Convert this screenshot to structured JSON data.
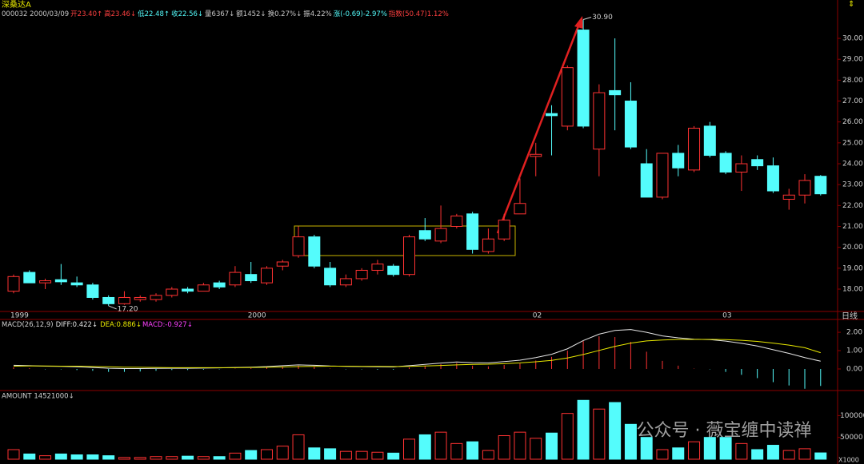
{
  "header": {
    "stock_name": "深桑达A",
    "info": [
      {
        "text": "000032 2000/03/09",
        "color": "#c8c8c8"
      },
      {
        "text": "开23.40↑",
        "color": "#ff4040"
      },
      {
        "text": "高23.46↓",
        "color": "#ff4040"
      },
      {
        "text": "低22.48↑",
        "color": "#54fcfc"
      },
      {
        "text": "收22.56↓",
        "color": "#54fcfc"
      },
      {
        "text": "量6367↓",
        "color": "#c8c8c8"
      },
      {
        "text": "额1452↓",
        "color": "#c8c8c8"
      },
      {
        "text": "换0.27%↓",
        "color": "#c8c8c8"
      },
      {
        "text": "振4.22%",
        "color": "#c8c8c8"
      },
      {
        "text": "涨(-0.69)-2.97%",
        "color": "#54fcfc"
      },
      {
        "text": "指数(50.47)1.12%",
        "color": "#ff4040"
      }
    ]
  },
  "watermark": "公众号 · 薇宝缠中读禅",
  "chart_data": [
    {
      "type": "candlestick",
      "categories": [
        "1999",
        null,
        null,
        null,
        null,
        null,
        null,
        null,
        null,
        null,
        null,
        null,
        null,
        null,
        null,
        "2000",
        null,
        null,
        null,
        null,
        null,
        null,
        null,
        null,
        null,
        null,
        null,
        null,
        null,
        null,
        null,
        null,
        null,
        "02",
        null,
        null,
        null,
        null,
        null,
        null,
        null,
        null,
        null,
        null,
        null,
        "03",
        null,
        null,
        null,
        null,
        null,
        null
      ],
      "open": [
        17.9,
        18.8,
        18.3,
        18.45,
        18.3,
        18.2,
        17.6,
        17.3,
        17.5,
        17.5,
        17.7,
        18.0,
        17.9,
        18.3,
        18.2,
        18.7,
        18.3,
        19.1,
        19.6,
        20.5,
        19.0,
        18.2,
        18.5,
        18.9,
        19.1,
        18.7,
        20.8,
        20.3,
        21.0,
        21.6,
        19.8,
        20.4,
        21.6,
        24.35,
        26.4,
        25.8,
        30.4,
        24.7,
        27.5,
        27.0,
        24.0,
        22.4,
        24.5,
        23.7,
        25.8,
        24.5,
        23.6,
        24.2,
        23.9,
        22.3,
        22.5,
        23.4
      ],
      "high": [
        18.7,
        18.9,
        18.5,
        19.2,
        18.6,
        18.3,
        17.7,
        17.9,
        17.7,
        17.8,
        18.1,
        18.1,
        18.3,
        18.4,
        19.1,
        19.3,
        19.1,
        19.4,
        21.0,
        20.6,
        19.3,
        18.7,
        19.0,
        19.4,
        19.2,
        20.6,
        21.4,
        22.0,
        21.6,
        21.7,
        20.9,
        21.6,
        23.3,
        25.0,
        26.8,
        28.7,
        30.9,
        27.8,
        30.0,
        27.9,
        24.7,
        24.5,
        24.9,
        25.8,
        26.0,
        24.6,
        24.4,
        24.4,
        24.3,
        22.8,
        23.5,
        23.46
      ],
      "low": [
        17.8,
        18.3,
        18.0,
        18.2,
        18.1,
        17.5,
        17.2,
        17.25,
        17.4,
        17.4,
        17.6,
        17.8,
        17.9,
        18.0,
        18.1,
        18.3,
        18.2,
        18.9,
        19.5,
        19.0,
        18.1,
        18.1,
        18.4,
        18.7,
        18.6,
        18.6,
        20.3,
        20.2,
        20.9,
        19.7,
        19.7,
        20.3,
        21.6,
        23.4,
        24.4,
        25.6,
        25.7,
        23.4,
        25.6,
        24.7,
        22.4,
        22.3,
        23.4,
        23.6,
        24.3,
        23.5,
        22.7,
        23.7,
        22.6,
        21.8,
        22.1,
        22.48
      ],
      "close": [
        18.6,
        18.3,
        18.4,
        18.35,
        18.2,
        17.6,
        17.3,
        17.6,
        17.6,
        17.7,
        18.0,
        17.9,
        18.2,
        18.1,
        18.8,
        18.4,
        19.0,
        19.3,
        20.5,
        19.1,
        18.2,
        18.5,
        18.9,
        19.2,
        18.7,
        20.5,
        20.4,
        20.9,
        21.5,
        19.9,
        20.4,
        21.3,
        22.1,
        24.45,
        26.3,
        28.6,
        25.8,
        27.4,
        27.3,
        24.8,
        22.4,
        24.5,
        23.8,
        25.7,
        24.4,
        23.6,
        24.0,
        23.9,
        22.7,
        22.5,
        23.2,
        22.56
      ],
      "up_color": "#ff3232",
      "down_color": "#54fcfc",
      "ylim": [
        16.93,
        31.53
      ],
      "yticks": [
        {
          "value": 18,
          "label": "18.00"
        },
        {
          "value": 19,
          "label": "19.00"
        },
        {
          "value": 20,
          "label": "20.00"
        },
        {
          "value": 21,
          "label": "21.00"
        },
        {
          "value": 22,
          "label": "22.00"
        },
        {
          "value": 23,
          "label": "23.00"
        },
        {
          "value": 24,
          "label": "24.00"
        },
        {
          "value": 25,
          "label": "25.00"
        },
        {
          "value": 26,
          "label": "26.00"
        },
        {
          "value": 27,
          "label": "27.00"
        },
        {
          "value": 28,
          "label": "28.00"
        },
        {
          "value": 29,
          "label": "29.00"
        },
        {
          "value": 30,
          "label": "30.00"
        }
      ],
      "high_label": "30.90",
      "low_label": "17.20",
      "period_label": "日线"
    },
    {
      "type": "macd",
      "header": "MACD(26,12,9)",
      "series": [
        {
          "label": "DIFF:0.422↓",
          "color": "#e6e6e6",
          "values": [
            0.2,
            0.18,
            0.15,
            0.14,
            0.12,
            0.08,
            0.04,
            0.02,
            0.02,
            0.03,
            0.04,
            0.04,
            0.05,
            0.06,
            0.08,
            0.1,
            0.13,
            0.18,
            0.22,
            0.2,
            0.16,
            0.14,
            0.13,
            0.12,
            0.11,
            0.18,
            0.25,
            0.32,
            0.38,
            0.34,
            0.33,
            0.4,
            0.48,
            0.62,
            0.8,
            1.1,
            1.55,
            1.9,
            2.1,
            2.15,
            2.0,
            1.8,
            1.7,
            1.62,
            1.6,
            1.52,
            1.4,
            1.25,
            1.05,
            0.85,
            0.62,
            0.422
          ]
        },
        {
          "label": "DEA:0.886↓",
          "color": "#e8e800",
          "values": [
            0.15,
            0.16,
            0.16,
            0.15,
            0.15,
            0.13,
            0.12,
            0.1,
            0.09,
            0.08,
            0.07,
            0.07,
            0.07,
            0.07,
            0.07,
            0.08,
            0.09,
            0.11,
            0.13,
            0.14,
            0.15,
            0.15,
            0.14,
            0.14,
            0.13,
            0.14,
            0.16,
            0.19,
            0.22,
            0.25,
            0.26,
            0.29,
            0.33,
            0.39,
            0.47,
            0.6,
            0.79,
            1.01,
            1.23,
            1.41,
            1.53,
            1.58,
            1.61,
            1.61,
            1.61,
            1.6,
            1.56,
            1.5,
            1.41,
            1.3,
            1.16,
            0.886
          ]
        }
      ],
      "histogram": {
        "label": "MACD:-0.927↓",
        "color": "#ff40ff",
        "values": [
          0.1,
          0.04,
          -0.02,
          -0.02,
          -0.06,
          -0.1,
          -0.16,
          -0.16,
          -0.14,
          -0.1,
          -0.06,
          -0.06,
          -0.04,
          -0.02,
          0.02,
          0.04,
          0.08,
          0.14,
          0.18,
          0.12,
          0.02,
          -0.02,
          -0.02,
          -0.04,
          -0.04,
          0.08,
          0.18,
          0.26,
          0.32,
          0.18,
          0.14,
          0.22,
          0.3,
          0.46,
          0.66,
          1.0,
          1.52,
          1.78,
          1.74,
          1.48,
          0.94,
          0.44,
          0.18,
          0.02,
          -0.02,
          -0.16,
          -0.32,
          -0.5,
          -0.72,
          -0.9,
          -1.08,
          -0.927
        ]
      },
      "ylim": [
        -1.09,
        2.57
      ],
      "yticks": [
        {
          "value": 0,
          "label": "0.00"
        },
        {
          "value": 1,
          "label": "1.00"
        },
        {
          "value": 2,
          "label": "2.00"
        }
      ]
    },
    {
      "type": "bar",
      "header": "AMOUNT 14521000↓",
      "values": [
        22000,
        12000,
        8000,
        12000,
        10000,
        10000,
        8000,
        4000,
        4000,
        6000,
        6000,
        7000,
        6000,
        6000,
        14000,
        20000,
        22000,
        30000,
        56000,
        26000,
        24000,
        18000,
        18000,
        16000,
        14000,
        46000,
        56000,
        62000,
        36000,
        40000,
        20000,
        54000,
        62000,
        48000,
        60000,
        105000,
        135000,
        115000,
        130000,
        80000,
        50000,
        22000,
        26000,
        40000,
        50000,
        50000,
        36000,
        22000,
        32000,
        20000,
        24000,
        14521
      ],
      "ylim": [
        0,
        152000
      ],
      "yticks": [
        50000,
        100000
      ],
      "unit_label": "X1000"
    }
  ]
}
